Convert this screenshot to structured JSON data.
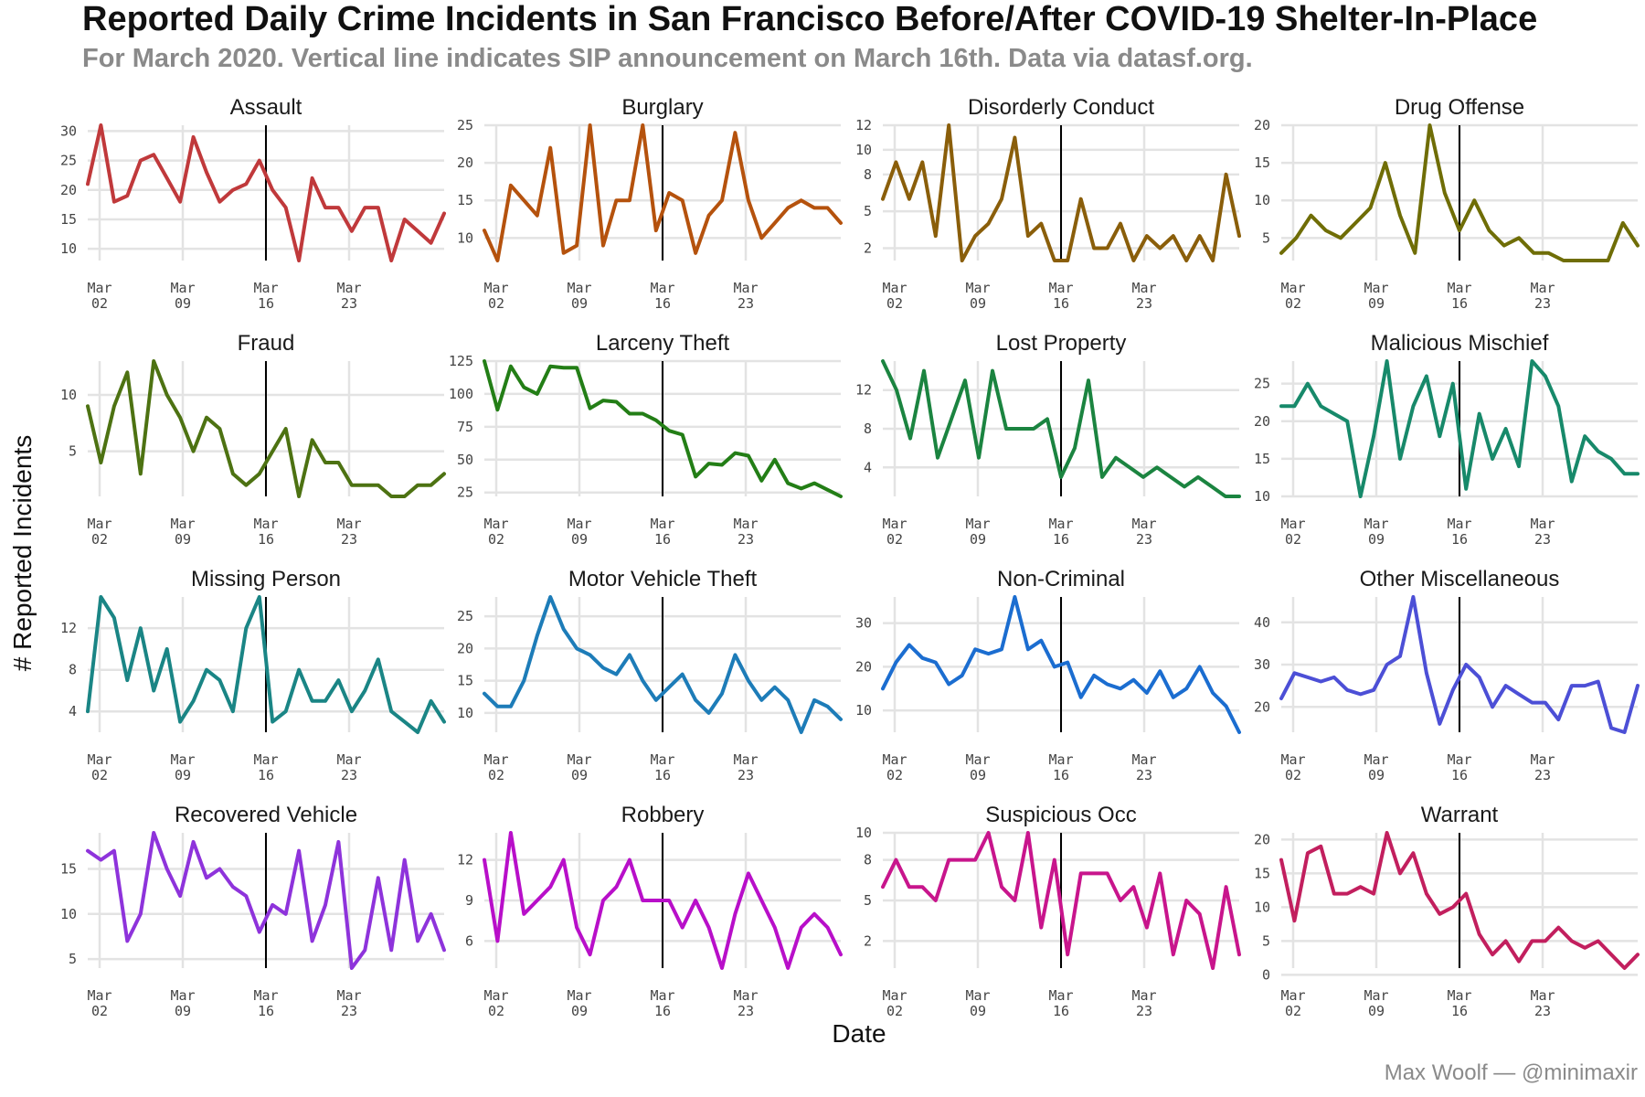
{
  "title": "Reported Daily Crime Incidents in San Francisco Before/After COVID-19 Shelter-In-Place",
  "subtitle": "For March 2020. Vertical line indicates SIP announcement on March 16th. Data via datasf.org.",
  "credit": "Max Woolf — @minimaxir",
  "chart_data": {
    "type": "line",
    "xlabel": "Date",
    "ylabel": "# Reported Incidents",
    "x_range": [
      "2020-03-01",
      "2020-03-31"
    ],
    "x_ticks": [
      "2020-03-02",
      "2020-03-09",
      "2020-03-16",
      "2020-03-23"
    ],
    "x_tick_labels": [
      [
        "Mar",
        "02"
      ],
      [
        "Mar",
        "09"
      ],
      [
        "Mar",
        "16"
      ],
      [
        "Mar",
        "23"
      ]
    ],
    "vline_date": "2020-03-16",
    "grid": true,
    "panels": [
      {
        "name": "Assault",
        "color": "#c0393b",
        "ylim": [
          8,
          31
        ],
        "yticks": [
          10,
          15,
          20,
          25,
          30
        ],
        "values": [
          21,
          31,
          18,
          19,
          25,
          26,
          22,
          18,
          29,
          23,
          18,
          20,
          21,
          25,
          20,
          17,
          8,
          22,
          17,
          17,
          13,
          17,
          17,
          8,
          15,
          13,
          11,
          16
        ]
      },
      {
        "name": "Burglary",
        "color": "#b5520d",
        "ylim": [
          7,
          25
        ],
        "yticks": [
          10,
          15,
          20,
          25
        ],
        "values": [
          11,
          7,
          17,
          15,
          13,
          22,
          8,
          9,
          25,
          9,
          15,
          15,
          25,
          11,
          16,
          15,
          8,
          13,
          15,
          24,
          15,
          10,
          12,
          14,
          15,
          14,
          14,
          12
        ]
      },
      {
        "name": "Disorderly Conduct",
        "color": "#8a5e0a",
        "ylim": [
          1,
          12
        ],
        "yticks": [
          2,
          5,
          8,
          10,
          12
        ],
        "values": [
          6,
          9,
          6,
          9,
          3,
          12,
          1,
          3,
          4,
          6,
          11,
          3,
          4,
          1,
          1,
          6,
          2,
          2,
          4,
          1,
          3,
          2,
          3,
          1,
          3,
          1,
          8,
          3
        ]
      },
      {
        "name": "Drug Offense",
        "color": "#6f6d06",
        "ylim": [
          2,
          20
        ],
        "yticks": [
          5,
          10,
          15,
          20
        ],
        "values": [
          3,
          5,
          8,
          6,
          5,
          7,
          9,
          15,
          8,
          3,
          20,
          11,
          6,
          10,
          6,
          4,
          5,
          3,
          3,
          2,
          2,
          2,
          2,
          7,
          4
        ]
      },
      {
        "name": "Fraud",
        "color": "#4d7212",
        "ylim": [
          1,
          13
        ],
        "yticks": [
          5,
          10
        ],
        "values": [
          9,
          4,
          9,
          12,
          3,
          13,
          10,
          8,
          5,
          8,
          7,
          3,
          2,
          3,
          5,
          7,
          1,
          6,
          4,
          4,
          2,
          2,
          2,
          1,
          1,
          2,
          2,
          3
        ]
      },
      {
        "name": "Larceny Theft",
        "color": "#237e16",
        "ylim": [
          22,
          125
        ],
        "yticks": [
          25,
          50,
          75,
          100,
          125
        ],
        "values": [
          125,
          88,
          121,
          105,
          100,
          121,
          120,
          120,
          89,
          95,
          94,
          85,
          85,
          80,
          72,
          69,
          37,
          47,
          46,
          55,
          53,
          34,
          50,
          32,
          28,
          32,
          27,
          22
        ]
      },
      {
        "name": "Lost Property",
        "color": "#1b8440",
        "ylim": [
          1,
          15
        ],
        "yticks": [
          4,
          8,
          12
        ],
        "values": [
          15,
          12,
          7,
          14,
          5,
          9,
          13,
          5,
          14,
          8,
          8,
          8,
          9,
          3,
          6,
          13,
          3,
          5,
          4,
          3,
          4,
          3,
          2,
          3,
          2,
          1,
          1
        ]
      },
      {
        "name": "Malicious Mischief",
        "color": "#17896a",
        "ylim": [
          10,
          28
        ],
        "yticks": [
          10,
          15,
          20,
          25
        ],
        "values": [
          22,
          22,
          25,
          22,
          21,
          20,
          10,
          18,
          28,
          15,
          22,
          26,
          18,
          25,
          11,
          21,
          15,
          19,
          14,
          28,
          26,
          22,
          12,
          18,
          16,
          15,
          13,
          13
        ]
      },
      {
        "name": "Missing Person",
        "color": "#1a8585",
        "ylim": [
          2,
          15
        ],
        "yticks": [
          4,
          8,
          12
        ],
        "values": [
          4,
          15,
          13,
          7,
          12,
          6,
          10,
          3,
          5,
          8,
          7,
          4,
          12,
          15,
          3,
          4,
          8,
          5,
          5,
          7,
          4,
          6,
          9,
          4,
          3,
          2,
          5,
          3
        ]
      },
      {
        "name": "Motor Vehicle Theft",
        "color": "#1d7cb8",
        "ylim": [
          7,
          28
        ],
        "yticks": [
          10,
          15,
          20,
          25
        ],
        "values": [
          13,
          11,
          11,
          15,
          22,
          28,
          23,
          20,
          19,
          17,
          16,
          19,
          15,
          12,
          14,
          16,
          12,
          10,
          13,
          19,
          15,
          12,
          14,
          12,
          7,
          12,
          11,
          9
        ]
      },
      {
        "name": "Non-Criminal",
        "color": "#1b6dd0",
        "ylim": [
          5,
          36
        ],
        "yticks": [
          10,
          20,
          30
        ],
        "values": [
          15,
          21,
          25,
          22,
          21,
          16,
          18,
          24,
          23,
          24,
          36,
          24,
          26,
          20,
          21,
          13,
          18,
          16,
          15,
          17,
          14,
          19,
          13,
          15,
          20,
          14,
          11,
          5
        ]
      },
      {
        "name": "Other Miscellaneous",
        "color": "#4c4fd6",
        "ylim": [
          14,
          46
        ],
        "yticks": [
          20,
          30,
          40
        ],
        "values": [
          22,
          28,
          27,
          26,
          27,
          24,
          23,
          24,
          30,
          32,
          46,
          28,
          16,
          24,
          30,
          27,
          20,
          25,
          23,
          21,
          21,
          17,
          25,
          25,
          26,
          15,
          14,
          25
        ]
      },
      {
        "name": "Recovered Vehicle",
        "color": "#8e33db",
        "ylim": [
          4,
          19
        ],
        "yticks": [
          5,
          10,
          15
        ],
        "values": [
          17,
          16,
          17,
          7,
          10,
          19,
          15,
          12,
          18,
          14,
          15,
          13,
          12,
          8,
          11,
          10,
          17,
          7,
          11,
          18,
          4,
          6,
          14,
          6,
          16,
          7,
          10,
          6
        ]
      },
      {
        "name": "Robbery",
        "color": "#b80fc9",
        "ylim": [
          4,
          14
        ],
        "yticks": [
          6,
          9,
          12
        ],
        "values": [
          12,
          6,
          14,
          8,
          9,
          10,
          12,
          7,
          5,
          9,
          10,
          12,
          9,
          9,
          9,
          7,
          9,
          7,
          4,
          8,
          11,
          9,
          7,
          4,
          7,
          8,
          7,
          5
        ]
      },
      {
        "name": "Suspicious Occ",
        "color": "#c8158c",
        "ylim": [
          0,
          10
        ],
        "yticks": [
          2,
          5,
          8,
          10
        ],
        "values": [
          6,
          8,
          6,
          6,
          5,
          8,
          8,
          8,
          10,
          6,
          5,
          10,
          3,
          8,
          1,
          7,
          7,
          7,
          5,
          6,
          3,
          7,
          1,
          5,
          4,
          0,
          6,
          1
        ]
      },
      {
        "name": "Warrant",
        "color": "#c21f5e",
        "ylim": [
          1,
          21
        ],
        "yticks": [
          0,
          5,
          10,
          15,
          20
        ],
        "values": [
          17,
          8,
          18,
          19,
          12,
          12,
          13,
          12,
          21,
          15,
          18,
          12,
          9,
          10,
          12,
          6,
          3,
          5,
          2,
          5,
          5,
          7,
          5,
          4,
          5,
          3,
          1,
          3
        ]
      }
    ]
  }
}
